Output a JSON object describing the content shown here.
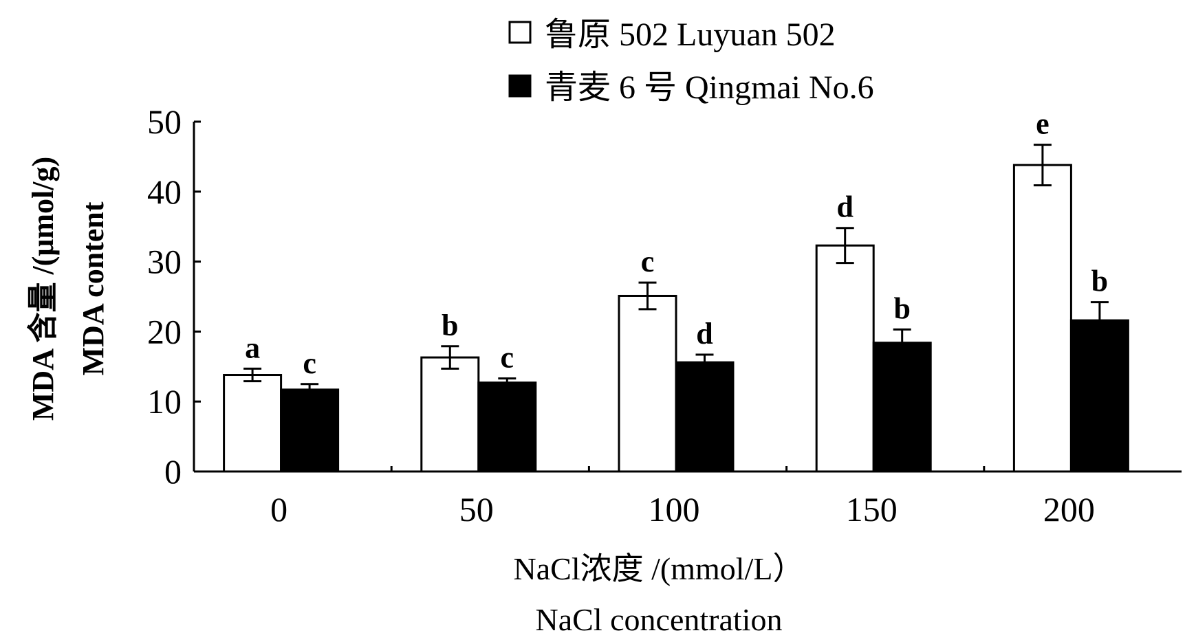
{
  "chart_data": {
    "type": "bar",
    "categories": [
      "0",
      "50",
      "100",
      "150",
      "200"
    ],
    "series": [
      {
        "name": "鲁原 502  Luyuan 502",
        "fill": "#ffffff",
        "values": [
          13.8,
          16.3,
          25.1,
          32.3,
          43.8
        ],
        "errors": [
          0.9,
          1.6,
          1.9,
          2.5,
          2.9
        ],
        "letters": [
          "a",
          "b",
          "c",
          "d",
          "e"
        ]
      },
      {
        "name": "青麦 6 号  Qingmai No.6",
        "fill": "#000000",
        "values": [
          11.7,
          12.7,
          15.6,
          18.4,
          21.6
        ],
        "errors": [
          0.8,
          0.6,
          1.1,
          1.9,
          2.6
        ],
        "letters": [
          "c",
          "c",
          "d",
          "b",
          "b"
        ]
      }
    ],
    "ylim": [
      0,
      50
    ],
    "yticks": [
      "0",
      "10",
      "20",
      "30",
      "40",
      "50"
    ],
    "xlabel_line1": "NaCl浓度 /(mmol/L）",
    "xlabel_line2": "NaCl concentration",
    "ylabel_line1": "MDA 含量 /(μmol/g)",
    "ylabel_line2": "MDA content",
    "legend_position": "top-center"
  }
}
